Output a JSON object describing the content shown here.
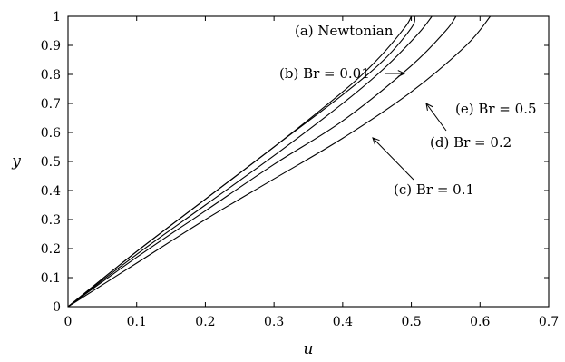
{
  "chart_data": {
    "type": "line",
    "title": "",
    "xlabel": "u",
    "ylabel": "y",
    "xlim": [
      0,
      0.7
    ],
    "ylim": [
      0,
      1
    ],
    "xticks": [
      "0",
      "0.1",
      "0.2",
      "0.3",
      "0.4",
      "0.5",
      "0.6",
      "0.7"
    ],
    "yticks": [
      "0",
      "0.1",
      "0.2",
      "0.3",
      "0.4",
      "0.5",
      "0.6",
      "0.7",
      "0.8",
      "0.9",
      "1"
    ],
    "grid": false,
    "series": [
      {
        "name": "(a) Newtonian",
        "x": [
          0,
          0.1,
          0.2,
          0.3,
          0.4,
          0.45,
          0.49,
          0.5
        ],
        "y": [
          0,
          0.19,
          0.37,
          0.55,
          0.74,
          0.85,
          0.96,
          1.0
        ]
      },
      {
        "name": "(b) Br = 0.01",
        "x": [
          0,
          0.1,
          0.2,
          0.3,
          0.4,
          0.46,
          0.5,
          0.505
        ],
        "y": [
          0,
          0.19,
          0.37,
          0.55,
          0.73,
          0.85,
          0.96,
          1.0
        ]
      },
      {
        "name": "(c) Br = 0.1",
        "x": [
          0,
          0.1,
          0.2,
          0.3,
          0.4,
          0.46,
          0.51,
          0.53
        ],
        "y": [
          0,
          0.18,
          0.35,
          0.52,
          0.7,
          0.82,
          0.94,
          1.0
        ]
      },
      {
        "name": "(d) Br = 0.2",
        "x": [
          0,
          0.1,
          0.2,
          0.3,
          0.4,
          0.5,
          0.55,
          0.565
        ],
        "y": [
          0,
          0.17,
          0.33,
          0.49,
          0.64,
          0.83,
          0.95,
          1.0
        ]
      },
      {
        "name": "(e) Br = 0.5",
        "x": [
          0,
          0.1,
          0.2,
          0.3,
          0.4,
          0.5,
          0.58,
          0.615
        ],
        "y": [
          0,
          0.15,
          0.3,
          0.44,
          0.58,
          0.74,
          0.9,
          1.0
        ]
      }
    ],
    "annotations": [
      {
        "text": "(a) Newtonian"
      },
      {
        "text": "(b) Br = 0.01"
      },
      {
        "text": "(c) Br = 0.1"
      },
      {
        "text": "(d) Br = 0.2"
      },
      {
        "text": "(e) Br = 0.5"
      }
    ]
  }
}
